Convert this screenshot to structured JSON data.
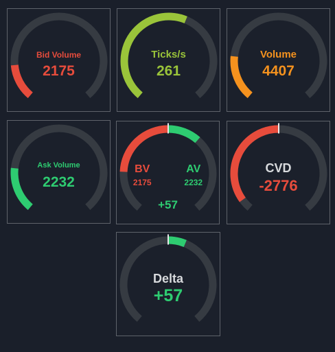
{
  "colors": {
    "track": "#363b42",
    "red": "#e74c3c",
    "green": "#2ecc71",
    "lime": "#9ac43a",
    "orange": "#f5921e",
    "white_label": "#d8dadd",
    "needle": "#e8e8e8"
  },
  "gauges": {
    "bid_volume": {
      "label": "Bid Volume",
      "value": "2175",
      "fill": 0.16
    },
    "ticks": {
      "label": "Ticks/s",
      "value": "261",
      "fill": 0.58
    },
    "volume": {
      "label": "Volume",
      "value": "4407",
      "fill": 0.2
    },
    "ask_volume": {
      "label": "Ask Volume",
      "value": "2232",
      "fill": 0.2
    },
    "bv_av": {
      "bv_label": "BV",
      "bv_value": "2175",
      "av_label": "AV",
      "av_value": "2232",
      "diff": "+57",
      "bid_share": 0.49,
      "ask_share": 0.51
    },
    "cvd": {
      "label": "CVD",
      "value": "-2776",
      "fill": -0.45
    },
    "delta": {
      "label": "Delta",
      "value": "+57",
      "fill": 0.08
    }
  }
}
